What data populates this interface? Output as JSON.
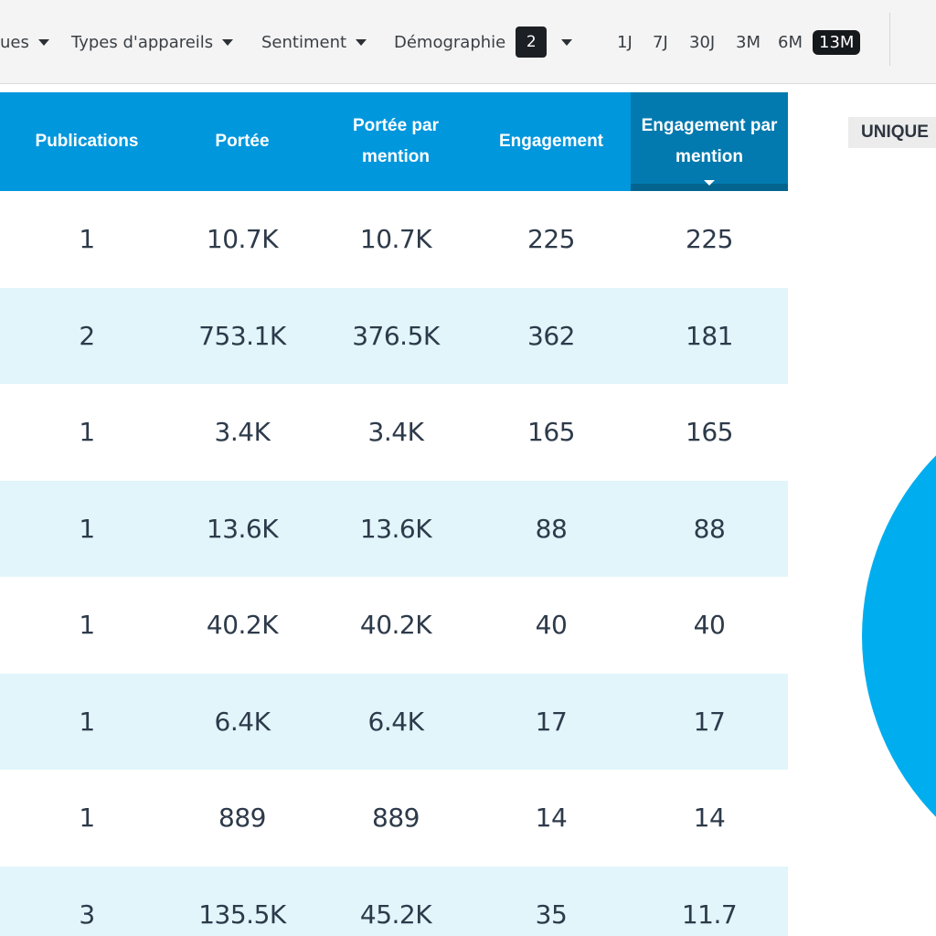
{
  "filters": {
    "truncated_filter": {
      "label": "ues"
    },
    "device_types": {
      "label": "Types d'appareils"
    },
    "sentiment": {
      "label": "Sentiment"
    },
    "demographics": {
      "label": "Démographie",
      "count": "2"
    }
  },
  "time_ranges": [
    {
      "label": "1J",
      "active": false
    },
    {
      "label": "7J",
      "active": false
    },
    {
      "label": "30J",
      "active": false
    },
    {
      "label": "3M",
      "active": false
    },
    {
      "label": "6M",
      "active": false
    },
    {
      "label": "13M",
      "active": true
    }
  ],
  "table": {
    "headers": [
      {
        "label": "Publications"
      },
      {
        "label": "Portée"
      },
      {
        "label": "Portée par mention"
      },
      {
        "label": "Engagement"
      },
      {
        "label": "Engagement par mention",
        "sorted": "descending"
      }
    ],
    "rows": [
      {
        "publications": "1",
        "reach": "10.7K",
        "reach_per_mention": "10.7K",
        "engagement": "225",
        "engagement_per_mention": "225"
      },
      {
        "publications": "2",
        "reach": "753.1K",
        "reach_per_mention": "376.5K",
        "engagement": "362",
        "engagement_per_mention": "181"
      },
      {
        "publications": "1",
        "reach": "3.4K",
        "reach_per_mention": "3.4K",
        "engagement": "165",
        "engagement_per_mention": "165"
      },
      {
        "publications": "1",
        "reach": "13.6K",
        "reach_per_mention": "13.6K",
        "engagement": "88",
        "engagement_per_mention": "88"
      },
      {
        "publications": "1",
        "reach": "40.2K",
        "reach_per_mention": "40.2K",
        "engagement": "40",
        "engagement_per_mention": "40"
      },
      {
        "publications": "1",
        "reach": "6.4K",
        "reach_per_mention": "6.4K",
        "engagement": "17",
        "engagement_per_mention": "17"
      },
      {
        "publications": "1",
        "reach": "889",
        "reach_per_mention": "889",
        "engagement": "14",
        "engagement_per_mention": "14"
      },
      {
        "publications": "3",
        "reach": "135.5K",
        "reach_per_mention": "45.2K",
        "engagement": "35",
        "engagement_per_mention": "11.7"
      }
    ]
  },
  "side_panel": {
    "label": "UNIQUE"
  },
  "colors": {
    "header_bg": "#0097dd",
    "sorted_header_bg": "#027aaf",
    "alt_row_bg": "#e1f5fb",
    "pie_fill": "#00aeef",
    "badge_bg": "#1c1f23"
  },
  "icons": {
    "caret": "chevron-down-icon",
    "sort": "sort-descending-icon"
  }
}
